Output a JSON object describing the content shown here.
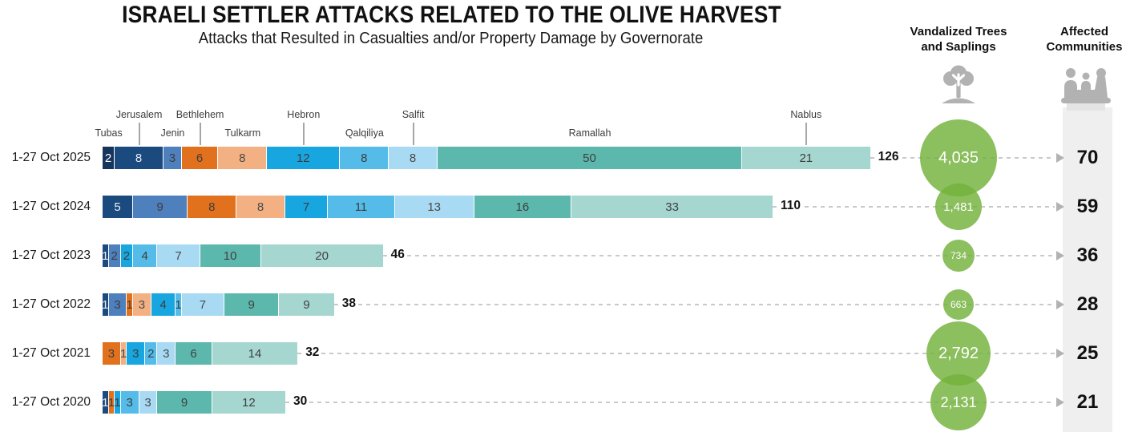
{
  "title": "ISRAELI SETTLER ATTACKS RELATED TO THE OLIVE HARVEST",
  "subtitle": "Attacks that Resulted in Casualties and/or Property Damage by Governorate",
  "columns": {
    "trees": {
      "line1": "Vandalized Trees",
      "line2": "and Saplings",
      "icon": "tree-icon"
    },
    "communities": {
      "line1": "Affected",
      "line2": "Communities",
      "icon": "people-icon"
    }
  },
  "colors": {
    "bubble_green": "#8FC162",
    "band_gray": "#efefef",
    "dash_gray": "#c9c9c9",
    "icon_gray": "#b2b2b2"
  },
  "palette": {
    "Tubas": {
      "fill": "#16355d",
      "text": "#ffffff"
    },
    "Jerusalem": {
      "fill": "#1b4a7e",
      "text": "#e9eef4"
    },
    "Jenin": {
      "fill": "#4d80bd",
      "text": "#3d3d3d"
    },
    "Bethlehem": {
      "fill": "#e2711d",
      "text": "#3d3d3d"
    },
    "Tulkarm": {
      "fill": "#f3b183",
      "text": "#4a4a4a"
    },
    "Hebron": {
      "fill": "#18a6e0",
      "text": "#3d3d3d"
    },
    "Qalqiliya": {
      "fill": "#55bce9",
      "text": "#3d3d3d"
    },
    "Salfit": {
      "fill": "#a9daf3",
      "text": "#4a4a4a"
    },
    "Ramallah": {
      "fill": "#5cb8ac",
      "text": "#404040"
    },
    "Nablus": {
      "fill": "#a5d6d0",
      "text": "#404040"
    }
  },
  "chart_data": {
    "type": "bar",
    "orientation": "horizontal-stacked",
    "categories": [
      "1-27 Oct 2025",
      "1-27 Oct 2024",
      "1-27 Oct 2023",
      "1-27 Oct 2022",
      "1-27 Oct 2021",
      "1-27 Oct 2020"
    ],
    "governorates": [
      "Tubas",
      "Jerusalem",
      "Jenin",
      "Bethlehem",
      "Tulkarm",
      "Hebron",
      "Qalqiliya",
      "Salfit",
      "Ramallah",
      "Nablus"
    ],
    "annotations": [
      {
        "name": "Tubas",
        "tier": "lower"
      },
      {
        "name": "Jerusalem",
        "tier": "upper"
      },
      {
        "name": "Jenin",
        "tier": "lower"
      },
      {
        "name": "Bethlehem",
        "tier": "upper"
      },
      {
        "name": "Tulkarm",
        "tier": "lower"
      },
      {
        "name": "Hebron",
        "tier": "upper"
      },
      {
        "name": "Qalqiliya",
        "tier": "lower"
      },
      {
        "name": "Salfit",
        "tier": "upper"
      },
      {
        "name": "Ramallah",
        "tier": "lower"
      },
      {
        "name": "Nablus",
        "tier": "upper"
      }
    ],
    "rows": [
      {
        "label": "1-27 Oct 2025",
        "total": 126,
        "segments": [
          [
            "Tubas",
            2
          ],
          [
            "Jerusalem",
            8
          ],
          [
            "Jenin",
            3
          ],
          [
            "Bethlehem",
            6
          ],
          [
            "Tulkarm",
            8
          ],
          [
            "Hebron",
            12
          ],
          [
            "Qalqiliya",
            8
          ],
          [
            "Salfit",
            8
          ],
          [
            "Ramallah",
            50
          ],
          [
            "Nablus",
            21
          ]
        ],
        "trees_label": "4,035",
        "trees_value": 4035,
        "communities": 70
      },
      {
        "label": "1-27 Oct 2024",
        "total": 110,
        "segments": [
          [
            "Jerusalem",
            5
          ],
          [
            "Jenin",
            9
          ],
          [
            "Bethlehem",
            8
          ],
          [
            "Tulkarm",
            8
          ],
          [
            "Hebron",
            7
          ],
          [
            "Qalqiliya",
            11
          ],
          [
            "Salfit",
            13
          ],
          [
            "Ramallah",
            16
          ],
          [
            "Nablus",
            33
          ]
        ],
        "trees_label": "1,481",
        "trees_value": 1481,
        "communities": 59
      },
      {
        "label": "1-27 Oct 2023",
        "total": 46,
        "segments": [
          [
            "Jerusalem",
            1
          ],
          [
            "Jenin",
            2
          ],
          [
            "Hebron",
            2
          ],
          [
            "Qalqiliya",
            4
          ],
          [
            "Salfit",
            7
          ],
          [
            "Ramallah",
            10
          ],
          [
            "Nablus",
            20
          ]
        ],
        "trees_label": "734",
        "trees_value": 734,
        "communities": 36
      },
      {
        "label": "1-27 Oct 2022",
        "total": 38,
        "segments": [
          [
            "Jerusalem",
            1
          ],
          [
            "Jenin",
            3
          ],
          [
            "Bethlehem",
            1
          ],
          [
            "Tulkarm",
            3
          ],
          [
            "Hebron",
            4
          ],
          [
            "Qalqiliya",
            1
          ],
          [
            "Salfit",
            7
          ],
          [
            "Ramallah",
            9
          ],
          [
            "Nablus",
            9
          ]
        ],
        "trees_label": "663",
        "trees_value": 663,
        "communities": 28
      },
      {
        "label": "1-27 Oct 2021",
        "total": 32,
        "segments": [
          [
            "Bethlehem",
            3
          ],
          [
            "Tulkarm",
            1
          ],
          [
            "Hebron",
            3
          ],
          [
            "Qalqiliya",
            2
          ],
          [
            "Salfit",
            3
          ],
          [
            "Ramallah",
            6
          ],
          [
            "Nablus",
            14
          ]
        ],
        "trees_label": "2,792",
        "trees_value": 2792,
        "communities": 25
      },
      {
        "label": "1-27 Oct 2020",
        "total": 30,
        "segments": [
          [
            "Jerusalem",
            1
          ],
          [
            "Bethlehem",
            1
          ],
          [
            "Hebron",
            1
          ],
          [
            "Qalqiliya",
            3
          ],
          [
            "Salfit",
            3
          ],
          [
            "Ramallah",
            9
          ],
          [
            "Nablus",
            12
          ]
        ],
        "trees_label": "2,131",
        "trees_value": 2131,
        "communities": 21
      }
    ],
    "secondary_columns": {
      "trees": [
        4035,
        1481,
        734,
        663,
        2792,
        2131
      ],
      "communities": [
        70,
        59,
        36,
        28,
        25,
        21
      ]
    },
    "xlabel": "",
    "ylabel": "",
    "grid": false,
    "legend": "inline-annotations"
  }
}
